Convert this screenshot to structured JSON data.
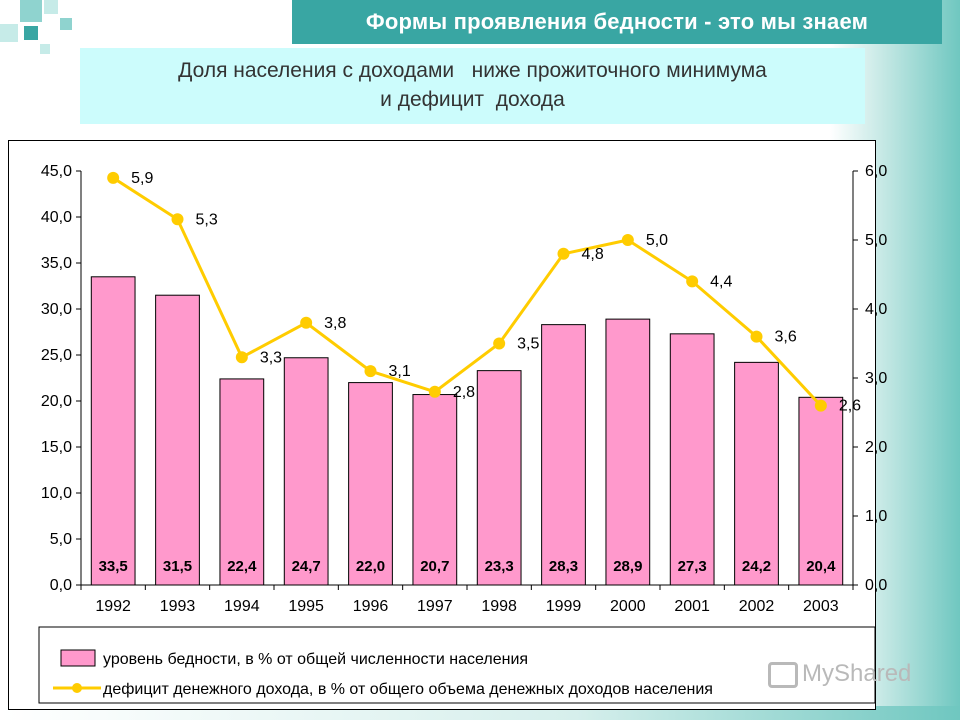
{
  "slide": {
    "title": "Формы проявления бедности - это мы знаем",
    "subtitle_line1": "Доля населения с доходами   ниже прожиточного минимума",
    "subtitle_line2": "и дефицит  дохода",
    "watermark_text": "MyShared",
    "accent_color": "#39a6a3",
    "subtitle_bg": "#ccfcfc"
  },
  "chart_data": {
    "type": "bar",
    "categories": [
      "1992",
      "1993",
      "1994",
      "1995",
      "1996",
      "1997",
      "1998",
      "1999",
      "2000",
      "2001",
      "2002",
      "2003"
    ],
    "series": [
      {
        "name": "уровень бедности, в % от общей численности населения",
        "chart": "bar",
        "axis": "left",
        "color": "#ff99cc",
        "values": [
          33.5,
          31.5,
          22.4,
          24.7,
          22.0,
          20.7,
          23.3,
          28.3,
          28.9,
          27.3,
          24.2,
          20.4
        ],
        "labels": [
          "33,5",
          "31,5",
          "22,4",
          "24,7",
          "22,0",
          "20,7",
          "23,3",
          "28,3",
          "28,9",
          "27,3",
          "24,2",
          "20,4"
        ]
      },
      {
        "name": "дефицит денежного дохода, в % от общего объема денежных доходов населения",
        "chart": "line",
        "axis": "right",
        "color": "#ffcc00",
        "values": [
          5.9,
          5.3,
          3.3,
          3.8,
          3.1,
          2.8,
          3.5,
          4.8,
          5.0,
          4.4,
          3.6,
          2.6
        ],
        "labels": [
          "5,9",
          "5,3",
          "3,3",
          "3,8",
          "3,1",
          "2,8",
          "3,5",
          "4,8",
          "5,0",
          "4,4",
          "3,6",
          "2,6"
        ]
      }
    ],
    "y_left": {
      "range": [
        0,
        45
      ],
      "ticks": [
        "0,0",
        "5,0",
        "10,0",
        "15,0",
        "20,0",
        "25,0",
        "30,0",
        "35,0",
        "40,0",
        "45,0"
      ],
      "tick_values": [
        0,
        5,
        10,
        15,
        20,
        25,
        30,
        35,
        40,
        45
      ]
    },
    "y_right": {
      "range": [
        0,
        6
      ],
      "ticks": [
        "0,0",
        "1,0",
        "2,0",
        "3,0",
        "4,0",
        "5,0",
        "6,0"
      ],
      "tick_values": [
        0,
        1,
        2,
        3,
        4,
        5,
        6
      ]
    },
    "grid": false,
    "legend_position": "bottom"
  }
}
